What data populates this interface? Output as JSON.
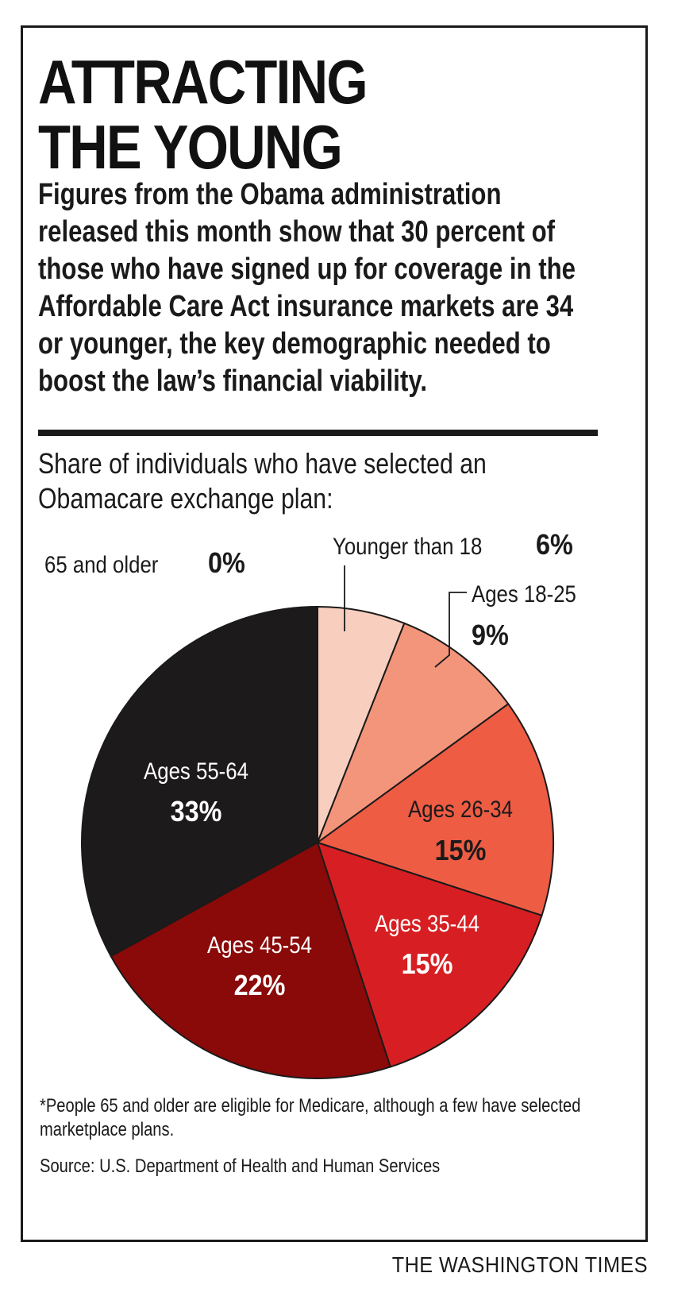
{
  "headline": {
    "line1": "ATTRACTING",
    "line2": "THE YOUNG"
  },
  "intro": "Figures from the Obama administration released this month show that 30 percent of those who have signed up for coverage in the Affordable Care Act insurance markets are 34 or younger, the key demographic needed to boost the law’s financial viability.",
  "subtitle": "Share of individuals who have selected an Obamacare exchange plan:",
  "chart_data": {
    "type": "pie",
    "title": "Share of individuals who have selected an Obamacare exchange plan:",
    "unit": "%",
    "slices": [
      {
        "label": "Younger than 18",
        "value": 6,
        "display": "6%",
        "color": "#f8cfbf"
      },
      {
        "label": "Ages 18-25",
        "value": 9,
        "display": "9%",
        "color": "#f3957a"
      },
      {
        "label": "Ages 26-34",
        "value": 15,
        "display": "15%",
        "color": "#ee5c44"
      },
      {
        "label": "Ages 35-44",
        "value": 15,
        "display": "15%",
        "color": "#d71f23"
      },
      {
        "label": "Ages 45-54",
        "value": 22,
        "display": "22%",
        "color": "#8a0909"
      },
      {
        "label": "Ages 55-64",
        "value": 33,
        "display": "33%",
        "color": "#1d1a1b"
      },
      {
        "label": "65 and older",
        "value": 0,
        "display": "0%",
        "color": "#cccccc"
      }
    ]
  },
  "footnote": "*People 65 and older are eligible for Medicare, although a few have selected marketplace plans.",
  "source": "Source: U.S. Department of Health and Human Services",
  "credit": "THE WASHINGTON TIMES"
}
